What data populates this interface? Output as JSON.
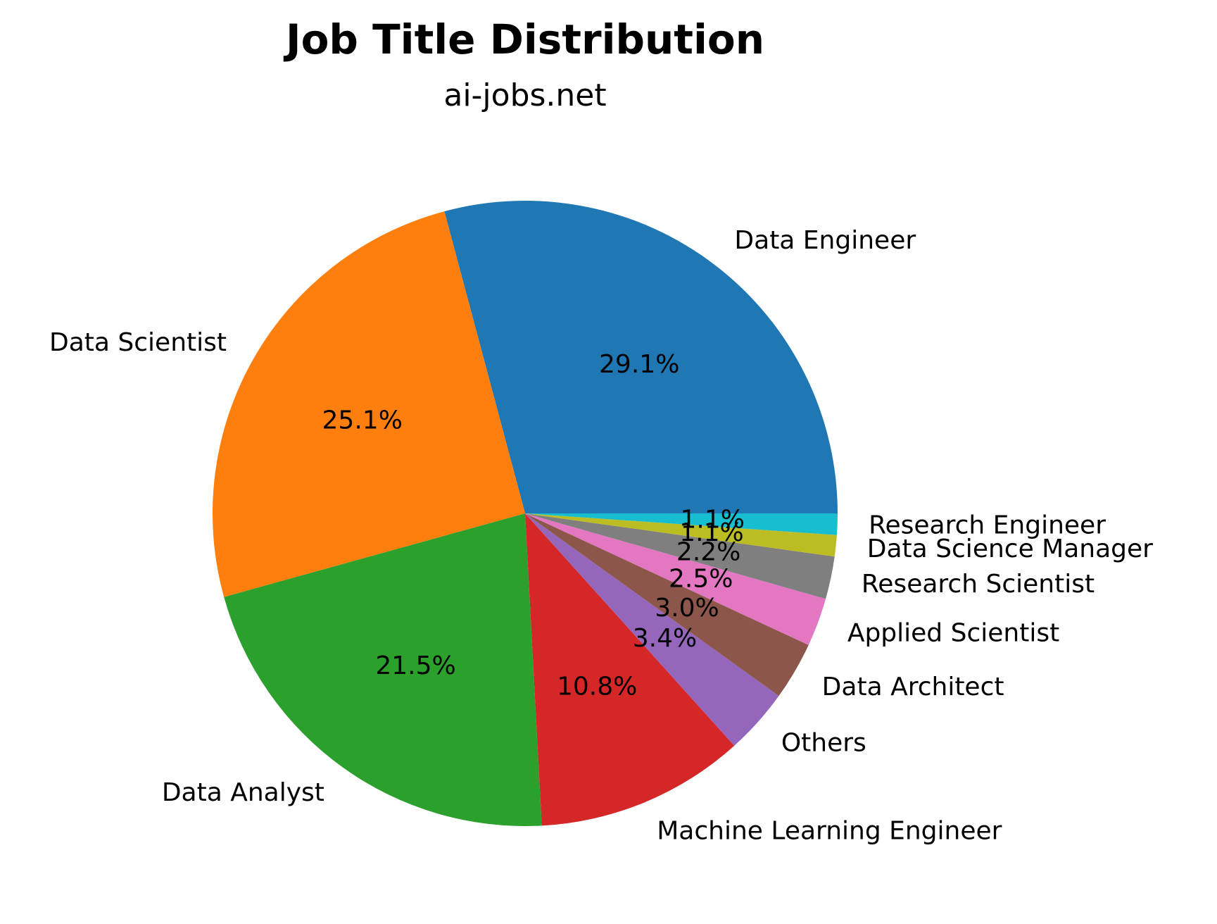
{
  "chart_data": {
    "type": "pie",
    "title": "Job Title Distribution",
    "subtitle": "ai-jobs.net",
    "start_angle_deg": 0,
    "direction": "counterclockwise",
    "slices": [
      {
        "label": "Data Engineer",
        "value": 29.1,
        "pct_label": "29.1%",
        "color": "#1f77b4"
      },
      {
        "label": "Data Scientist",
        "value": 25.1,
        "pct_label": "25.1%",
        "color": "#ff7f0e"
      },
      {
        "label": "Data Analyst",
        "value": 21.5,
        "pct_label": "21.5%",
        "color": "#2ca02c"
      },
      {
        "label": "Machine Learning Engineer",
        "value": 10.8,
        "pct_label": "10.8%",
        "color": "#d62728"
      },
      {
        "label": "Others",
        "value": 3.4,
        "pct_label": "3.4%",
        "color": "#9467bd"
      },
      {
        "label": "Data Architect",
        "value": 3.0,
        "pct_label": "3.0%",
        "color": "#8c564b"
      },
      {
        "label": "Applied Scientist",
        "value": 2.5,
        "pct_label": "2.5%",
        "color": "#e377c2"
      },
      {
        "label": "Research Scientist",
        "value": 2.2,
        "pct_label": "2.2%",
        "color": "#7f7f7f"
      },
      {
        "label": "Data Science Manager",
        "value": 1.1,
        "pct_label": "1.1%",
        "color": "#bcbd22"
      },
      {
        "label": "Research Engineer",
        "value": 1.1,
        "pct_label": "1.1%",
        "color": "#17becf"
      }
    ]
  }
}
